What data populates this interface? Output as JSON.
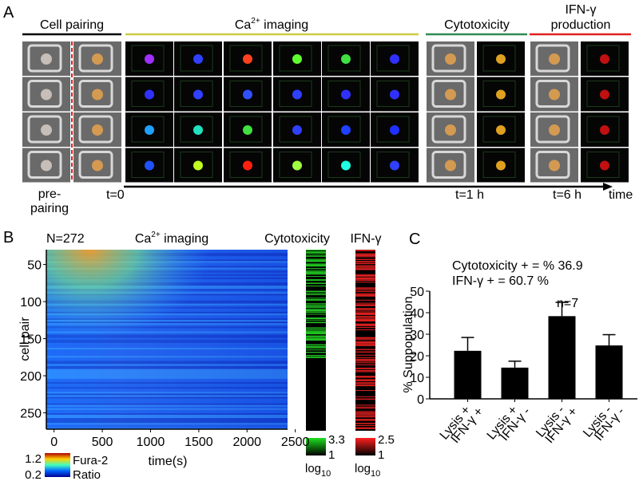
{
  "panel_a": {
    "label": "A",
    "sections": {
      "cell_pairing": "Cell pairing",
      "ca_imaging": {
        "base": "Ca",
        "sup": "2+",
        "rest": " imaging"
      },
      "cytotoxicity": "Cytotoxicity",
      "ifn": [
        "IFN-γ",
        "production"
      ]
    },
    "timeline": {
      "pre_pairing": [
        "pre-",
        "pairing"
      ],
      "t0": "t=0",
      "t1": "t=1 h",
      "t6": "t=6 h",
      "axis": "time"
    }
  },
  "panel_b": {
    "label": "B",
    "n": "N=272",
    "ca_imaging": {
      "base": "Ca",
      "sup": "2+",
      "rest": " imaging"
    },
    "cytotoxicity": "Cytotoxicity",
    "ifn": "IFN-γ",
    "ylabel": "cell pair",
    "xlabel": "time(s)",
    "ylim": [
      30,
      272
    ],
    "yticks": [
      50,
      100,
      150,
      200,
      250
    ],
    "xlim": [
      -80,
      2420
    ],
    "xticks": [
      0,
      500,
      1000,
      1500,
      2000,
      2500
    ],
    "ratio_scale": {
      "max": "1.2",
      "min": "0.2",
      "name": [
        "Fura-2",
        "Ratio"
      ]
    },
    "cyto_scale": {
      "max": "3.3",
      "min": "1",
      "log": "log",
      "sub": "10"
    },
    "ifn_scale": {
      "max": "2.5",
      "min": "1",
      "log": "log",
      "sub": "10"
    }
  },
  "chart_data": {
    "type": "bar",
    "panel_label": "C",
    "annotations": [
      "Cytotoxicity + = % 36.9",
      "IFN-γ + = 60.7 %",
      "n=7"
    ],
    "ylabel": "% Suppopulation",
    "categories": [
      [
        "Lysis +",
        "IFN-γ +"
      ],
      [
        "Lysis +",
        "IFN-γ -"
      ],
      [
        "Lysis -",
        "IFN-γ +"
      ],
      [
        "Lysis -",
        "IFN-γ -"
      ]
    ],
    "values": [
      22.3,
      14.5,
      38.4,
      24.8
    ],
    "errors": [
      6.2,
      3.0,
      6.4,
      5.0
    ],
    "color": "#000000",
    "ylim": [
      0,
      50
    ],
    "yticks": [
      0,
      10,
      20,
      30,
      40,
      50
    ]
  }
}
